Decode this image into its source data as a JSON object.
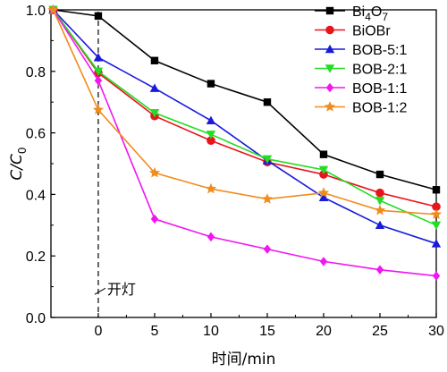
{
  "chart_data": {
    "type": "line",
    "xlabel": "时间/min",
    "ylabel": "C/C0",
    "ylabel_main": "C/C",
    "ylabel_sub": "0",
    "xlim": [
      -4.2,
      30
    ],
    "ylim": [
      0.0,
      1.0
    ],
    "x_ticks": [
      0,
      5,
      10,
      15,
      20,
      25,
      30
    ],
    "y_ticks": [
      0.0,
      0.2,
      0.4,
      0.6,
      0.8,
      1.0
    ],
    "y_tick_labels": [
      "0.0",
      "0.2",
      "0.4",
      "0.6",
      "0.8",
      "1.0"
    ],
    "grid": false,
    "legend_position": "top-right",
    "annotation": {
      "text": "开灯",
      "x": 0
    },
    "x": [
      -4,
      0,
      5,
      10,
      15,
      20,
      25,
      30
    ],
    "series": [
      {
        "name_main": "Bi",
        "name_sub1": "4",
        "name_mid": "O",
        "name_sub2": "7",
        "name": "Bi4O7",
        "color": "#000000",
        "marker": "square",
        "values": [
          1.0,
          0.98,
          0.835,
          0.76,
          0.7,
          0.53,
          0.465,
          0.415
        ]
      },
      {
        "name": "BiOBr",
        "color": "#e8141b",
        "marker": "circle",
        "values": [
          1.0,
          0.795,
          0.655,
          0.575,
          0.505,
          0.465,
          0.405,
          0.36
        ]
      },
      {
        "name": "BOB-5:1",
        "color": "#1a1adc",
        "marker": "triangle-up",
        "values": [
          1.0,
          0.845,
          0.745,
          0.64,
          0.51,
          0.39,
          0.3,
          0.24
        ]
      },
      {
        "name": "BOB-2:1",
        "color": "#22dd22",
        "marker": "triangle-down",
        "values": [
          1.0,
          0.8,
          0.665,
          0.595,
          0.515,
          0.48,
          0.38,
          0.3
        ]
      },
      {
        "name": "BOB-1:1",
        "color": "#f215f2",
        "marker": "diamond",
        "values": [
          1.0,
          0.77,
          0.32,
          0.262,
          0.222,
          0.182,
          0.155,
          0.135
        ]
      },
      {
        "name": "BOB-1:2",
        "color": "#f08c1e",
        "marker": "star",
        "values": [
          1.0,
          0.675,
          0.47,
          0.418,
          0.385,
          0.405,
          0.348,
          0.335
        ]
      }
    ]
  }
}
